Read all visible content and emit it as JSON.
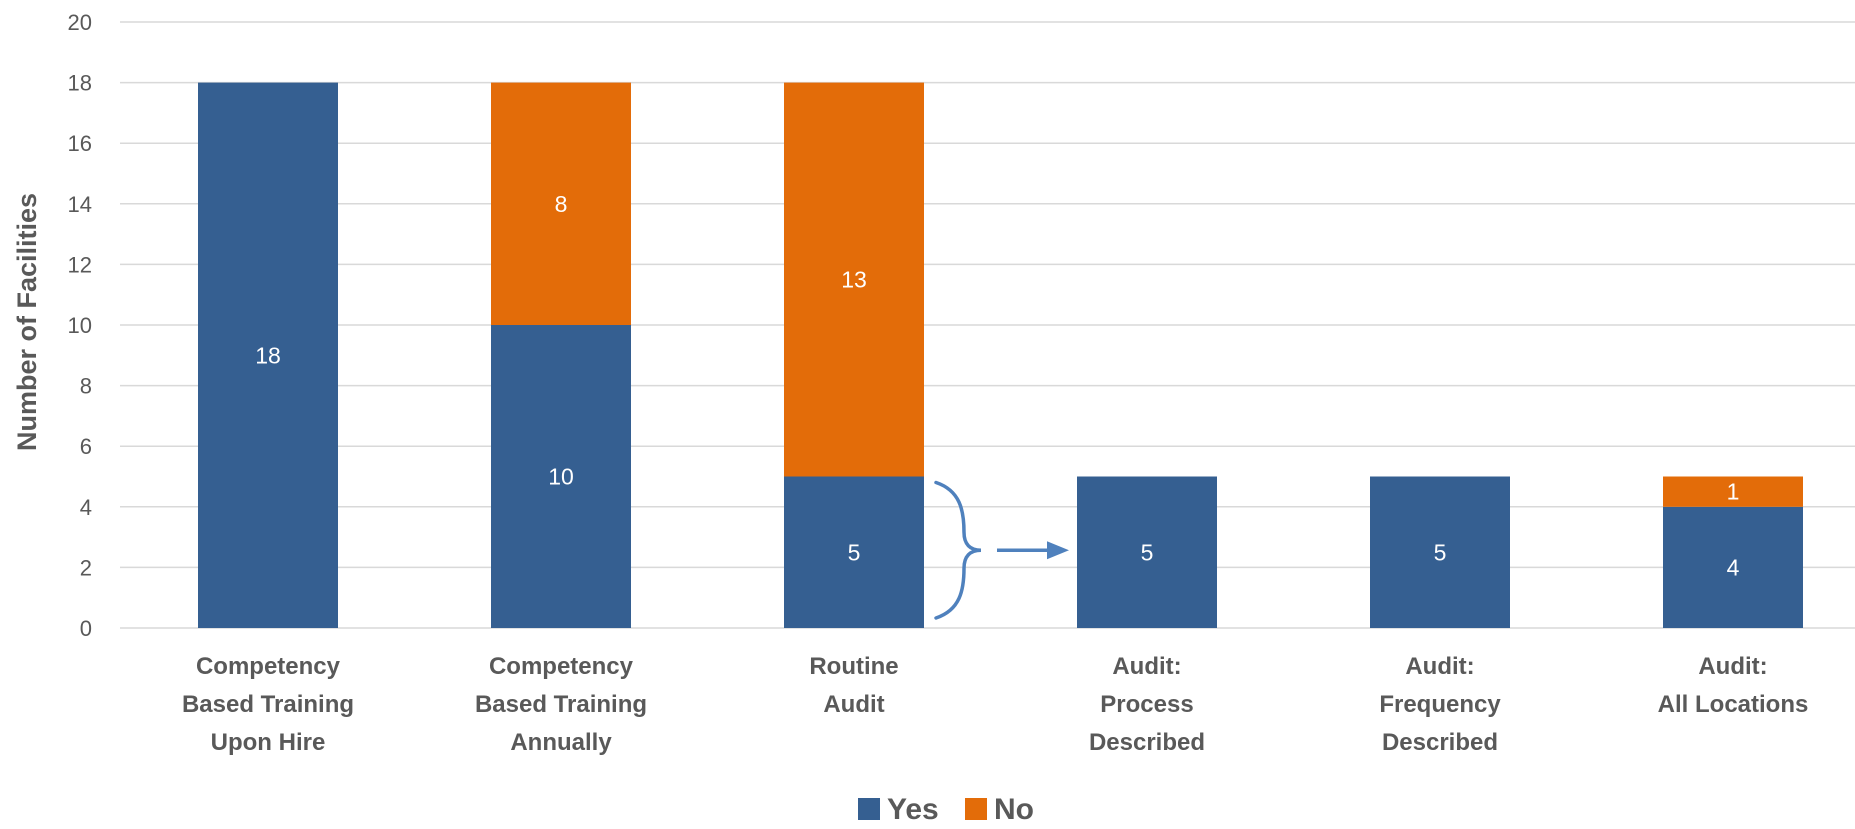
{
  "chart_data": {
    "type": "bar",
    "stacked": true,
    "title": "",
    "xlabel": "",
    "ylabel": "Number of Facilities",
    "ylim": [
      0,
      20
    ],
    "yticks": [
      0,
      2,
      4,
      6,
      8,
      10,
      12,
      14,
      16,
      18,
      20
    ],
    "grid": true,
    "legend_position": "bottom",
    "categories": [
      [
        "Competency",
        "Based Training",
        "Upon Hire"
      ],
      [
        "Competency",
        "Based Training",
        "Annually"
      ],
      [
        "Routine",
        "Audit"
      ],
      [
        "Audit:",
        "Process",
        "Described"
      ],
      [
        "Audit:",
        "Frequency",
        "Described"
      ],
      [
        "Audit:",
        "All Locations"
      ]
    ],
    "series": [
      {
        "name": "Yes",
        "color": "#355f91",
        "values": [
          18,
          10,
          5,
          5,
          5,
          4
        ]
      },
      {
        "name": "No",
        "color": "#e36c09",
        "values": [
          0,
          8,
          13,
          0,
          0,
          1
        ]
      }
    ],
    "annotations": [
      {
        "type": "brace-arrow",
        "from_category": 2,
        "to_category": 3,
        "color": "#4f81bd"
      }
    ]
  }
}
